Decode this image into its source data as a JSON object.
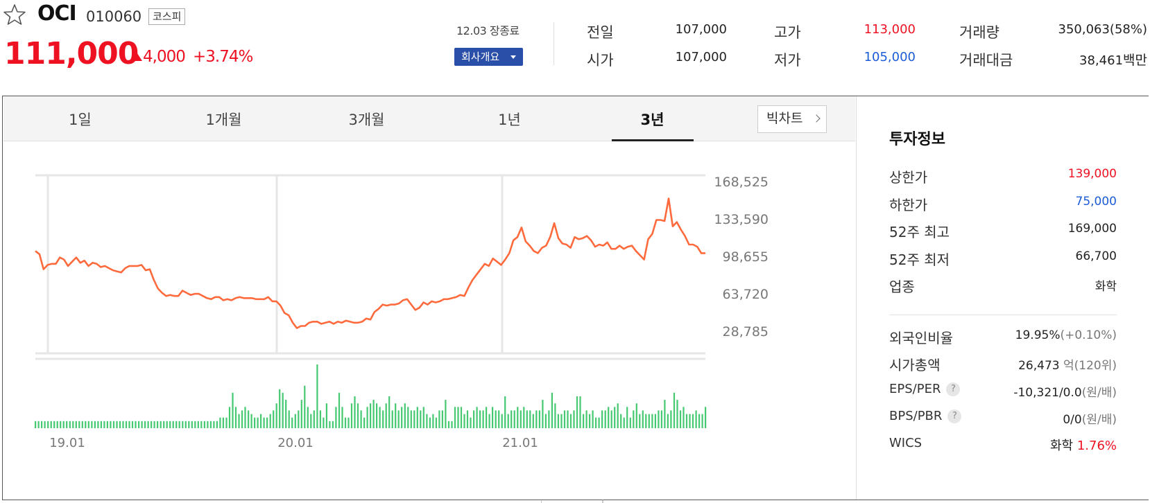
{
  "header": {
    "name": "OCI",
    "code": "010060",
    "market": "코스피",
    "price": "111,000",
    "change": "4,000",
    "change_rate": "+3.74%",
    "date_status": "12.03 장종료",
    "company_button": "회사개요",
    "colors": {
      "up": "#ee1122",
      "down": "#1b5cd6",
      "button": "#2a4fa8"
    }
  },
  "quote": {
    "prev_close_label": "전일",
    "prev_close": "107,000",
    "open_label": "시가",
    "open": "107,000",
    "high_label": "고가",
    "high": "113,000",
    "low_label": "저가",
    "low": "105,000",
    "volume_label": "거래량",
    "volume": "350,063(58%)",
    "amount_label": "거래대금",
    "amount": "38,461",
    "amount_unit": "백만"
  },
  "tabs": [
    "1일",
    "1개월",
    "3개월",
    "1년",
    "3년"
  ],
  "active_tab": "3년",
  "bigchart_label": "빅차트",
  "side": {
    "title": "투자정보",
    "rows": [
      {
        "label": "상한가",
        "value": "139,000"
      },
      {
        "label": "하한가",
        "value": "75,000"
      },
      {
        "label": "52주 최고",
        "value": "169,000"
      },
      {
        "label": "52주 최저",
        "value": "66,700"
      },
      {
        "label": "업종",
        "value": "화학"
      }
    ],
    "foreign_label": "외국인비율",
    "foreign_value": "19.95%",
    "foreign_change": "(+0.10%)",
    "mcap_label": "시가총액",
    "mcap_value": "26,473",
    "mcap_unit": "억(120위)",
    "eps_label": "EPS/PER",
    "eps_value": "-10,321/0.0",
    "eps_unit": "(원/배)",
    "bps_label": "BPS/PBR",
    "bps_value": "0/0",
    "bps_unit": "(원/배)",
    "wics_label": "WICS",
    "wics_value": "화학",
    "wics_rate": "1.76%",
    "help_icon": "?"
  },
  "chart_data": {
    "type": "line",
    "title": "",
    "y_ticks": [
      "168,525",
      "133,590",
      "98,655",
      "63,720",
      "28,785"
    ],
    "x_ticks": [
      "19.01",
      "20.01",
      "21.01"
    ],
    "line_color": "#ff6a3d",
    "volume_color": "#44c870",
    "grid": true,
    "price_series": [
      103000,
      100000,
      86000,
      90000,
      91000,
      91000,
      97000,
      95000,
      89000,
      93000,
      97000,
      92000,
      94000,
      89000,
      92000,
      91000,
      88000,
      89000,
      87000,
      85000,
      84000,
      83000,
      87000,
      89000,
      89000,
      89000,
      90000,
      85000,
      86000,
      76000,
      68000,
      64000,
      61000,
      62000,
      61000,
      61000,
      66000,
      64000,
      62000,
      63000,
      63000,
      61000,
      59000,
      58000,
      60000,
      60000,
      57000,
      58000,
      57000,
      59000,
      60000,
      59000,
      59000,
      59000,
      58000,
      58000,
      58000,
      60000,
      56000,
      56000,
      52000,
      45000,
      43000,
      36000,
      31000,
      33000,
      33000,
      36000,
      37000,
      37000,
      35000,
      36000,
      37000,
      35000,
      37000,
      36000,
      38000,
      37000,
      36000,
      36000,
      37000,
      40000,
      39000,
      46000,
      49000,
      53000,
      52000,
      53000,
      53000,
      54000,
      57000,
      58000,
      53000,
      48000,
      50000,
      55000,
      53000,
      56000,
      55000,
      56000,
      58000,
      58000,
      59000,
      60000,
      62000,
      61000,
      69000,
      76000,
      81000,
      86000,
      91000,
      89000,
      96000,
      93000,
      90000,
      95000,
      101000,
      113000,
      116000,
      125000,
      112000,
      108000,
      103000,
      101000,
      106000,
      108000,
      116000,
      129000,
      115000,
      110000,
      109000,
      106000,
      116000,
      114000,
      115000,
      117000,
      113000,
      107000,
      109000,
      108000,
      111000,
      105000,
      105000,
      108000,
      105000,
      107000,
      108000,
      103000,
      99000,
      95000,
      114000,
      119000,
      132000,
      132000,
      131000,
      152000,
      126000,
      130000,
      123000,
      117000,
      109000,
      109000,
      107000,
      101000,
      101000
    ],
    "volume_series": [
      2,
      2,
      2,
      2,
      2,
      2,
      2,
      2,
      2,
      2,
      2,
      2,
      2,
      2,
      2,
      2,
      2,
      2,
      2,
      2,
      2,
      2,
      2,
      2,
      2,
      2,
      2,
      2,
      2,
      2,
      2,
      2,
      2,
      2,
      2,
      2,
      2,
      2,
      2,
      2,
      2,
      2,
      2,
      2,
      2,
      2,
      2,
      2,
      2,
      2,
      2,
      2,
      2,
      2,
      2,
      2,
      2,
      2,
      2,
      3,
      3,
      3,
      6,
      10,
      6,
      4,
      5,
      6,
      5,
      4,
      3,
      3,
      4,
      3,
      3,
      4,
      5,
      7,
      11,
      10,
      8,
      5,
      3,
      4,
      5,
      8,
      12,
      6,
      4,
      5,
      18,
      5,
      3,
      7,
      2,
      2,
      6,
      10,
      6,
      3,
      3,
      7,
      9,
      7,
      5,
      3,
      6,
      7,
      8,
      7,
      6,
      5,
      7,
      9,
      5,
      7,
      5,
      6,
      7,
      6,
      5,
      5,
      6,
      5,
      6,
      4,
      3,
      4,
      3,
      5,
      5,
      8,
      2,
      2,
      6,
      6,
      6,
      4,
      5,
      3,
      5,
      6,
      5,
      5,
      6,
      4,
      6,
      5,
      5,
      4,
      9,
      4,
      5,
      5,
      6,
      5,
      6,
      5,
      5,
      4,
      5,
      5,
      8,
      4,
      5,
      10,
      7,
      4,
      4,
      5,
      5,
      4,
      5,
      9,
      9,
      4,
      5,
      4,
      5,
      3,
      3,
      5,
      5,
      6,
      5,
      6,
      7,
      4,
      3,
      6,
      3,
      5,
      7,
      4,
      5,
      4,
      4,
      4,
      4,
      5,
      5,
      8,
      4,
      5,
      10,
      8,
      5,
      6,
      4,
      4,
      4,
      5,
      4,
      4,
      6
    ]
  }
}
